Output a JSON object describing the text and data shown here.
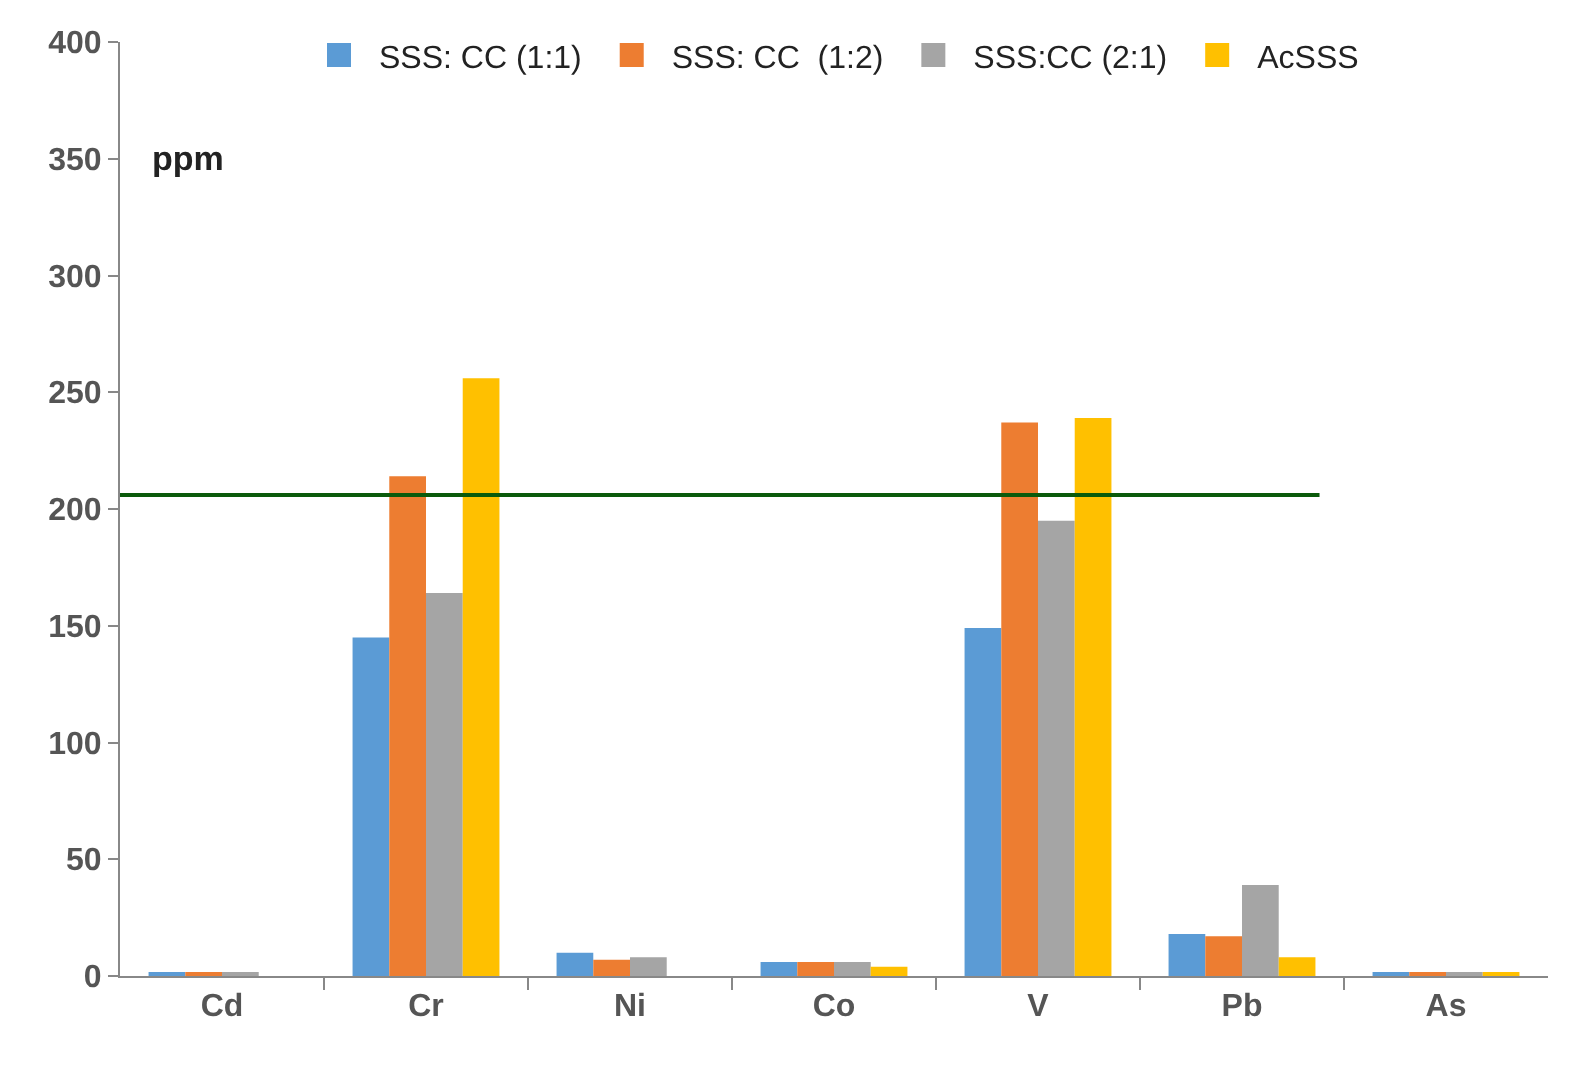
{
  "chart_data": {
    "type": "bar",
    "categories": [
      "Cd",
      "Cr",
      "Ni",
      "Co",
      "V",
      "Pb",
      "As"
    ],
    "series": [
      {
        "name": "SSS: CC (1:1)",
        "color": "#5b9bd5",
        "values": [
          1,
          145,
          10,
          6,
          149,
          18,
          1
        ]
      },
      {
        "name": "SSS: CC  (1:2)",
        "color": "#ed7d31",
        "values": [
          1,
          214,
          7,
          6,
          237,
          17,
          1
        ]
      },
      {
        "name": "SSS:CC (2:1)",
        "color": "#a5a5a5",
        "values": [
          1,
          164,
          8,
          6,
          195,
          39,
          1
        ]
      },
      {
        "name": "AcSSS",
        "color": "#ffc000",
        "values": [
          0,
          256,
          0,
          4,
          239,
          8,
          1
        ]
      }
    ],
    "ylim": [
      0,
      400
    ],
    "yticks": [
      0,
      50,
      100,
      150,
      200,
      250,
      300,
      350,
      400
    ],
    "grid": false,
    "legend": "top",
    "ref_lines": [
      {
        "axis": "y",
        "value": 206,
        "color": "#0b5a0b"
      }
    ],
    "annotations": [
      "ppm"
    ]
  }
}
